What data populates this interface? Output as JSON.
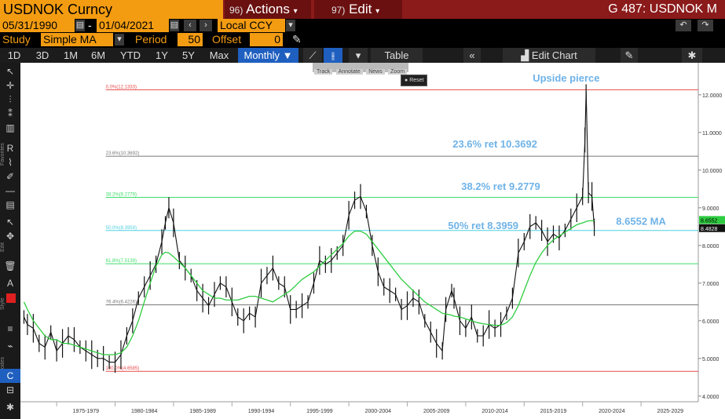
{
  "topbar": {
    "ticker": "USDNOK Curncy",
    "actions_num": "96)",
    "actions_label": "Actions",
    "edit_num": "97)",
    "edit_label": "Edit",
    "title": "G 487: USDNOK M"
  },
  "range": {
    "start": "05/31/1990",
    "dash": "-",
    "end": "01/04/2021",
    "currency": "Local CCY"
  },
  "study": {
    "label": "Study",
    "value": "Simple MA",
    "period_label": "Period",
    "period": "50",
    "offset_label": "Offset",
    "offset": "0"
  },
  "toolbar": {
    "timeframes": [
      "1D",
      "3D",
      "1M",
      "6M",
      "YTD",
      "1Y",
      "5Y",
      "Max"
    ],
    "frequency": "Monthly",
    "table_label": "Table",
    "edit_chart_label": "Edit Chart"
  },
  "mini_toolbar": {
    "track": "Track",
    "annotate": "Annotate",
    "news": "News",
    "zoom": "Zoom",
    "reset": "Reset"
  },
  "sidebar": {
    "favorites": "Favorites",
    "edit": "Edit",
    "style": "Style",
    "modes": "Modes"
  },
  "colors": {
    "accent_orange": "#f39c12",
    "header_red": "#8b1a1a",
    "price": "#ffffff",
    "ma": "#2ecc40",
    "fib_top": "#e84a4a",
    "fib_382": "#3ddc6a",
    "fib_50": "#4fd0e0",
    "annotation": "#6fb3e8",
    "axis_text": "#cccccc"
  },
  "chart_data": {
    "type": "line",
    "x": [
      1972.2,
      1972.5,
      1973,
      1973.5,
      1974,
      1974.5,
      1975,
      1975.5,
      1976,
      1976.5,
      1977,
      1977.5,
      1978,
      1978.5,
      1979,
      1979.5,
      1980,
      1980.5,
      1981,
      1981.5,
      1982,
      1982.5,
      1983,
      1983.5,
      1984,
      1984.3,
      1984.6,
      1985,
      1985.5,
      1986,
      1986.5,
      1987,
      1987.5,
      1988,
      1988.5,
      1989,
      1989.5,
      1990,
      1990.5,
      1991,
      1991.5,
      1992,
      1992.5,
      1993,
      1993.5,
      1994,
      1994.5,
      1995,
      1995.5,
      1996,
      1996.5,
      1997,
      1997.5,
      1998,
      1998.5,
      1999,
      1999.5,
      2000,
      2000.5,
      2001,
      2001.5,
      2002,
      2002.5,
      2003,
      2003.5,
      2004,
      2004.5,
      2005,
      2005.5,
      2006,
      2006.5,
      2007,
      2007.5,
      2008,
      2008.3,
      2008.8,
      2009,
      2009.5,
      2010,
      2010.5,
      2011,
      2011.5,
      2012,
      2012.5,
      2013,
      2013.5,
      2014,
      2014.5,
      2015,
      2015.5,
      2016,
      2016.5,
      2017,
      2017.5,
      2018,
      2018.5,
      2019,
      2019.5,
      2020,
      2020.2,
      2020.3,
      2020.5,
      2020.8,
      2021
    ],
    "series": [
      {
        "values": [
          6.1,
          5.9,
          5.8,
          5.4,
          5.3,
          5.7,
          5.2,
          5.4,
          5.6,
          5.5,
          5.3,
          5.2,
          5.1,
          5.0,
          5.0,
          4.9,
          4.9,
          5.1,
          5.6,
          6.0,
          6.6,
          6.9,
          7.2,
          7.5,
          8.1,
          8.6,
          9.0,
          8.6,
          7.6,
          7.4,
          7.2,
          6.8,
          6.6,
          6.4,
          6.7,
          7.0,
          6.9,
          6.5,
          6.1,
          6.0,
          6.2,
          6.1,
          7.0,
          7.2,
          7.4,
          7.0,
          6.9,
          6.3,
          6.3,
          6.4,
          6.5,
          7.0,
          7.6,
          7.5,
          7.6,
          7.8,
          8.0,
          8.8,
          9.2,
          9.3,
          8.9,
          8.0,
          7.3,
          6.9,
          6.8,
          6.7,
          6.3,
          6.4,
          6.6,
          6.5,
          6.0,
          5.7,
          5.4,
          5.2,
          6.3,
          6.8,
          6.6,
          6.0,
          5.8,
          6.1,
          5.6,
          5.6,
          5.9,
          5.8,
          5.9,
          6.2,
          6.6,
          7.8,
          8.1,
          8.5,
          8.6,
          8.4,
          8.1,
          8.3,
          8.2,
          8.4,
          8.7,
          9.0,
          9.3,
          10.8,
          12.1,
          9.4,
          9.3,
          8.48
        ]
      },
      {
        "values": [
          6.5,
          6.3,
          6.0,
          5.8,
          5.6,
          5.5,
          5.5,
          5.4,
          5.4,
          5.35,
          5.3,
          5.25,
          5.2,
          5.15,
          5.1,
          5.1,
          5.1,
          5.15,
          5.3,
          5.6,
          6.0,
          6.5,
          7.0,
          7.45,
          7.75,
          7.82,
          7.8,
          7.7,
          7.55,
          7.4,
          7.2,
          7.0,
          6.8,
          6.7,
          6.6,
          6.6,
          6.55,
          6.55,
          6.55,
          6.6,
          6.65,
          6.65,
          6.6,
          6.55,
          6.5,
          6.6,
          6.7,
          6.8,
          6.95,
          7.1,
          7.2,
          7.3,
          7.45,
          7.6,
          7.75,
          7.9,
          8.05,
          8.25,
          8.38,
          8.38,
          8.3,
          8.1,
          7.9,
          7.7,
          7.5,
          7.3,
          7.1,
          6.95,
          6.8,
          6.65,
          6.5,
          6.4,
          6.3,
          6.2,
          6.18,
          6.15,
          6.12,
          6.1,
          6.05,
          6.0,
          5.95,
          5.92,
          5.9,
          5.88,
          5.88,
          5.95,
          6.1,
          6.4,
          6.8,
          7.2,
          7.55,
          7.8,
          8.0,
          8.15,
          8.25,
          8.35,
          8.45,
          8.55,
          8.6,
          8.62,
          8.64,
          8.65,
          8.66,
          8.6552
        ]
      }
    ],
    "x_tick_labels": [
      "1975-1979",
      "1980-1984",
      "1985-1989",
      "1990-1994",
      "1995-1999",
      "2000-2004",
      "2005-2009",
      "2010-2014",
      "2015-2019",
      "2020-2024",
      "2025-2029"
    ],
    "x_tick_centers": [
      1977.5,
      1982.5,
      1987.5,
      1992.5,
      1997.5,
      2002.5,
      2007.5,
      2012.5,
      2017.5,
      2022.5,
      2027.5
    ],
    "xlim": [
      1971.9,
      2029.9
    ],
    "y_ticks": [
      4.0,
      5.0,
      6.0,
      7.0,
      8.0,
      9.0,
      10.0,
      11.0,
      12.0
    ],
    "y_tick_labels": [
      "4.0000",
      "5.0000",
      "6.0000",
      "7.0000",
      "8.0000",
      "9.0000",
      "10.0000",
      "11.0000",
      "12.0000"
    ],
    "ylim": [
      3.85,
      12.85
    ],
    "last_price_label": "8.4828",
    "last_ma_label": "8.6552",
    "fib_levels": [
      {
        "label": "0.0%(12.1333)",
        "value": 12.1333,
        "color": "#e84a4a"
      },
      {
        "label": "23.6%(10.3692)",
        "value": 10.3692,
        "color": "#777777"
      },
      {
        "label": "38.2%(9.2779)",
        "value": 9.2779,
        "color": "#3ddc6a"
      },
      {
        "label": "50.0%(8.3959)",
        "value": 8.3959,
        "color": "#4fd0e0"
      },
      {
        "label": "61.8%(7.5139)",
        "value": 7.5139,
        "color": "#3ddc6a"
      },
      {
        "label": "76.4%(6.4226)",
        "value": 6.4226,
        "color": "#777777"
      },
      {
        "label": "100.0%(4.6585)",
        "value": 4.6585,
        "color": "#e84a4a"
      }
    ],
    "annotations": [
      {
        "text": "Upside pierce",
        "x": 2018.6,
        "y": 12.35
      },
      {
        "text": "23.6% ret 10.3692",
        "x": 2012.5,
        "y": 10.6
      },
      {
        "text": "38.2% ret 9.2779",
        "x": 2013.0,
        "y": 9.48
      },
      {
        "text": "50% ret 8.3959",
        "x": 2011.5,
        "y": 8.43
      },
      {
        "text": "8.6552 MA",
        "x": 2025.0,
        "y": 8.55
      }
    ]
  }
}
